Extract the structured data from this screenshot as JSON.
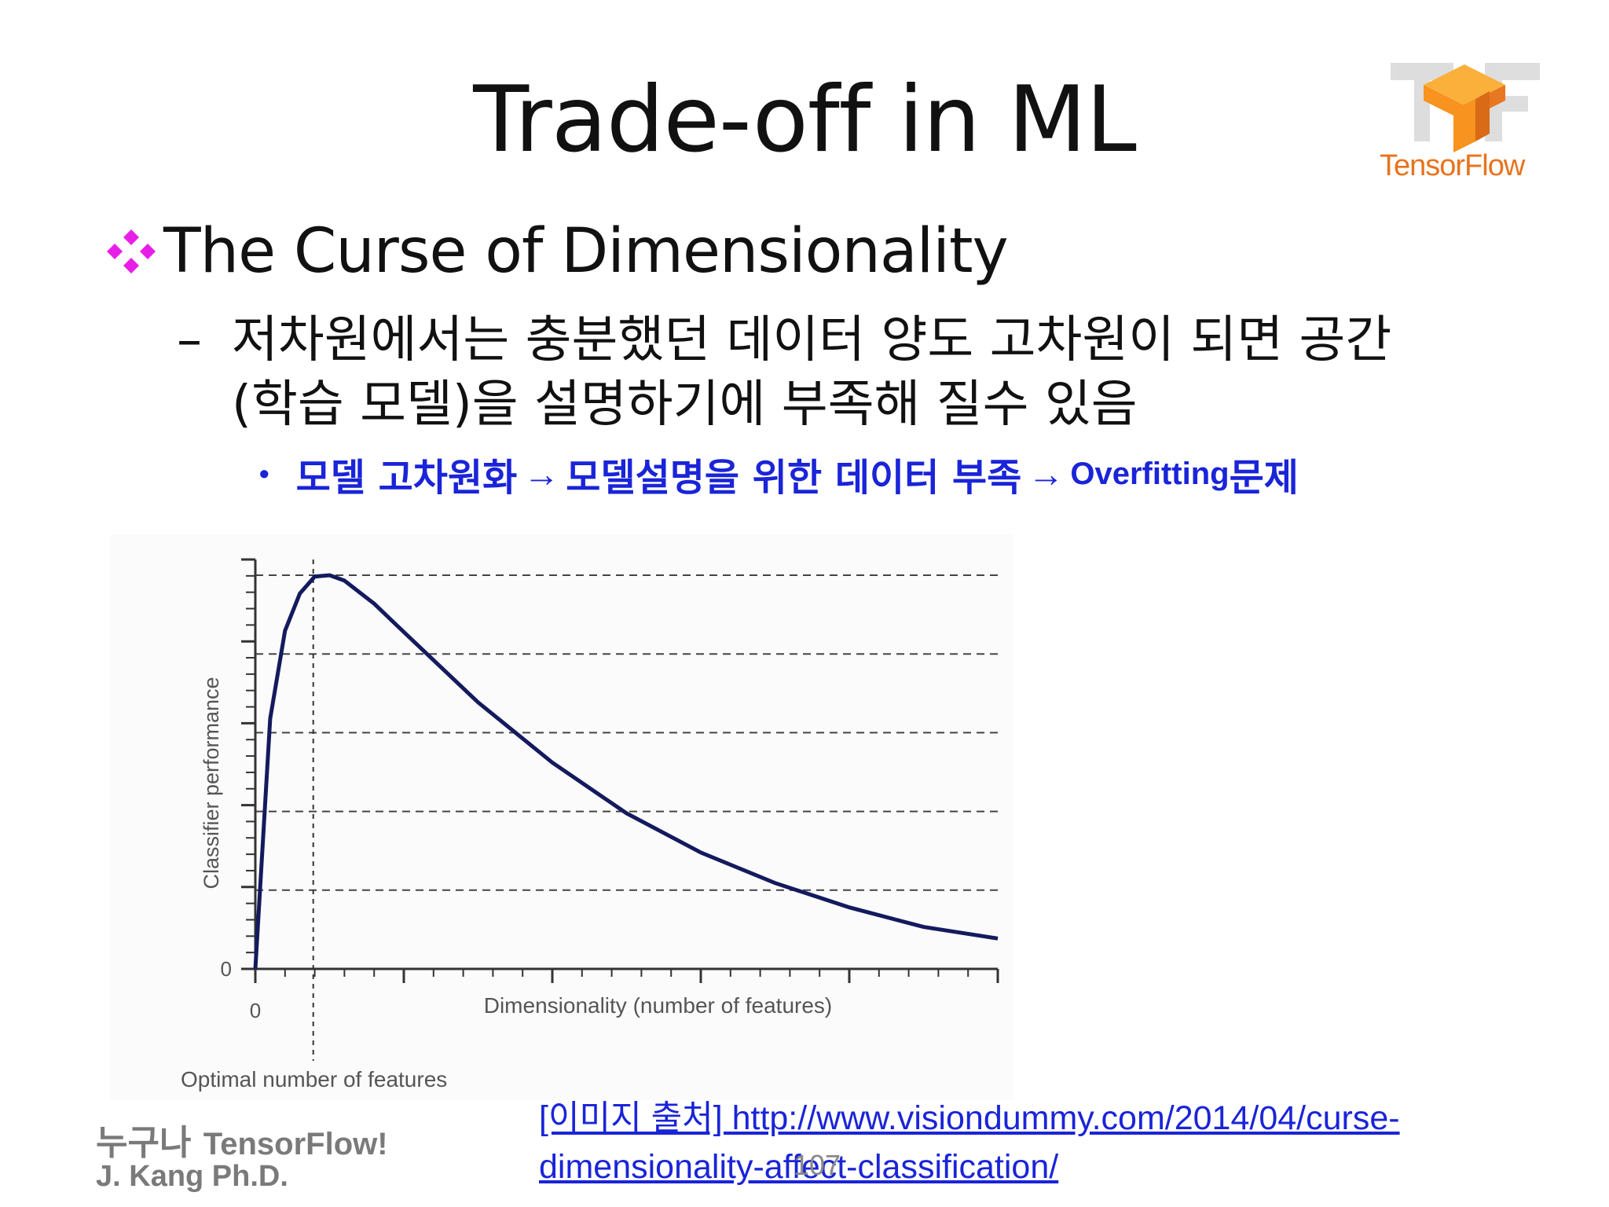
{
  "slide": {
    "title": "Trade-off in ML",
    "logo_text": "TensorFlow",
    "bullet1": "The Curse of Dimensionality",
    "sub1_dash": "–",
    "sub1": "저차원에서는 충분했던 데이터 양도 고차원이 되면 공간(학습 모델)을 설명하기에 부족해 질수 있음",
    "sub2_part1": "모델 고차원화",
    "sub2_part2": "모델설명을 위한 데이터 부족",
    "sub2_part3": "Overfitting",
    "sub2_part4": "문제",
    "arrow": "→",
    "footer_line1_ko": "누구나",
    "footer_line1_en": "TensorFlow!",
    "footer_line2": "J. Kang Ph.D.",
    "source_text": "[이미지 출처] http://www.visiondummy.com/2014/04/curse-dimensionality-affect-classification/",
    "page_number": "107"
  },
  "colors": {
    "bullet_diamond": "#e81ee8",
    "highlight_blue": "#1a24d8",
    "curve": "#141a5e",
    "tensorflow_orange": "#f7931e"
  },
  "chart_data": {
    "type": "line",
    "xlabel": "Dimensionality (number of features)",
    "ylabel": "Classifier performance",
    "x_tick_label": "0",
    "y_tick_label": "0",
    "annotation": "Optimal number of features",
    "grid": "horizontal dashed",
    "series": [
      {
        "x": [
          0,
          0.1,
          0.2,
          0.3,
          0.4,
          0.5,
          0.6,
          0.8,
          1.0,
          1.5,
          2.0,
          2.5,
          3.0,
          3.5,
          4.0,
          4.5,
          5.0
        ],
        "values": [
          0,
          3.7,
          5.0,
          5.55,
          5.8,
          5.82,
          5.74,
          5.4,
          4.98,
          3.94,
          3.05,
          2.3,
          1.72,
          1.27,
          0.91,
          0.62,
          0.45
        ]
      }
    ],
    "x_optimal": 0.39,
    "xlim": [
      0,
      5
    ],
    "ylim": [
      0,
      5.82
    ]
  }
}
